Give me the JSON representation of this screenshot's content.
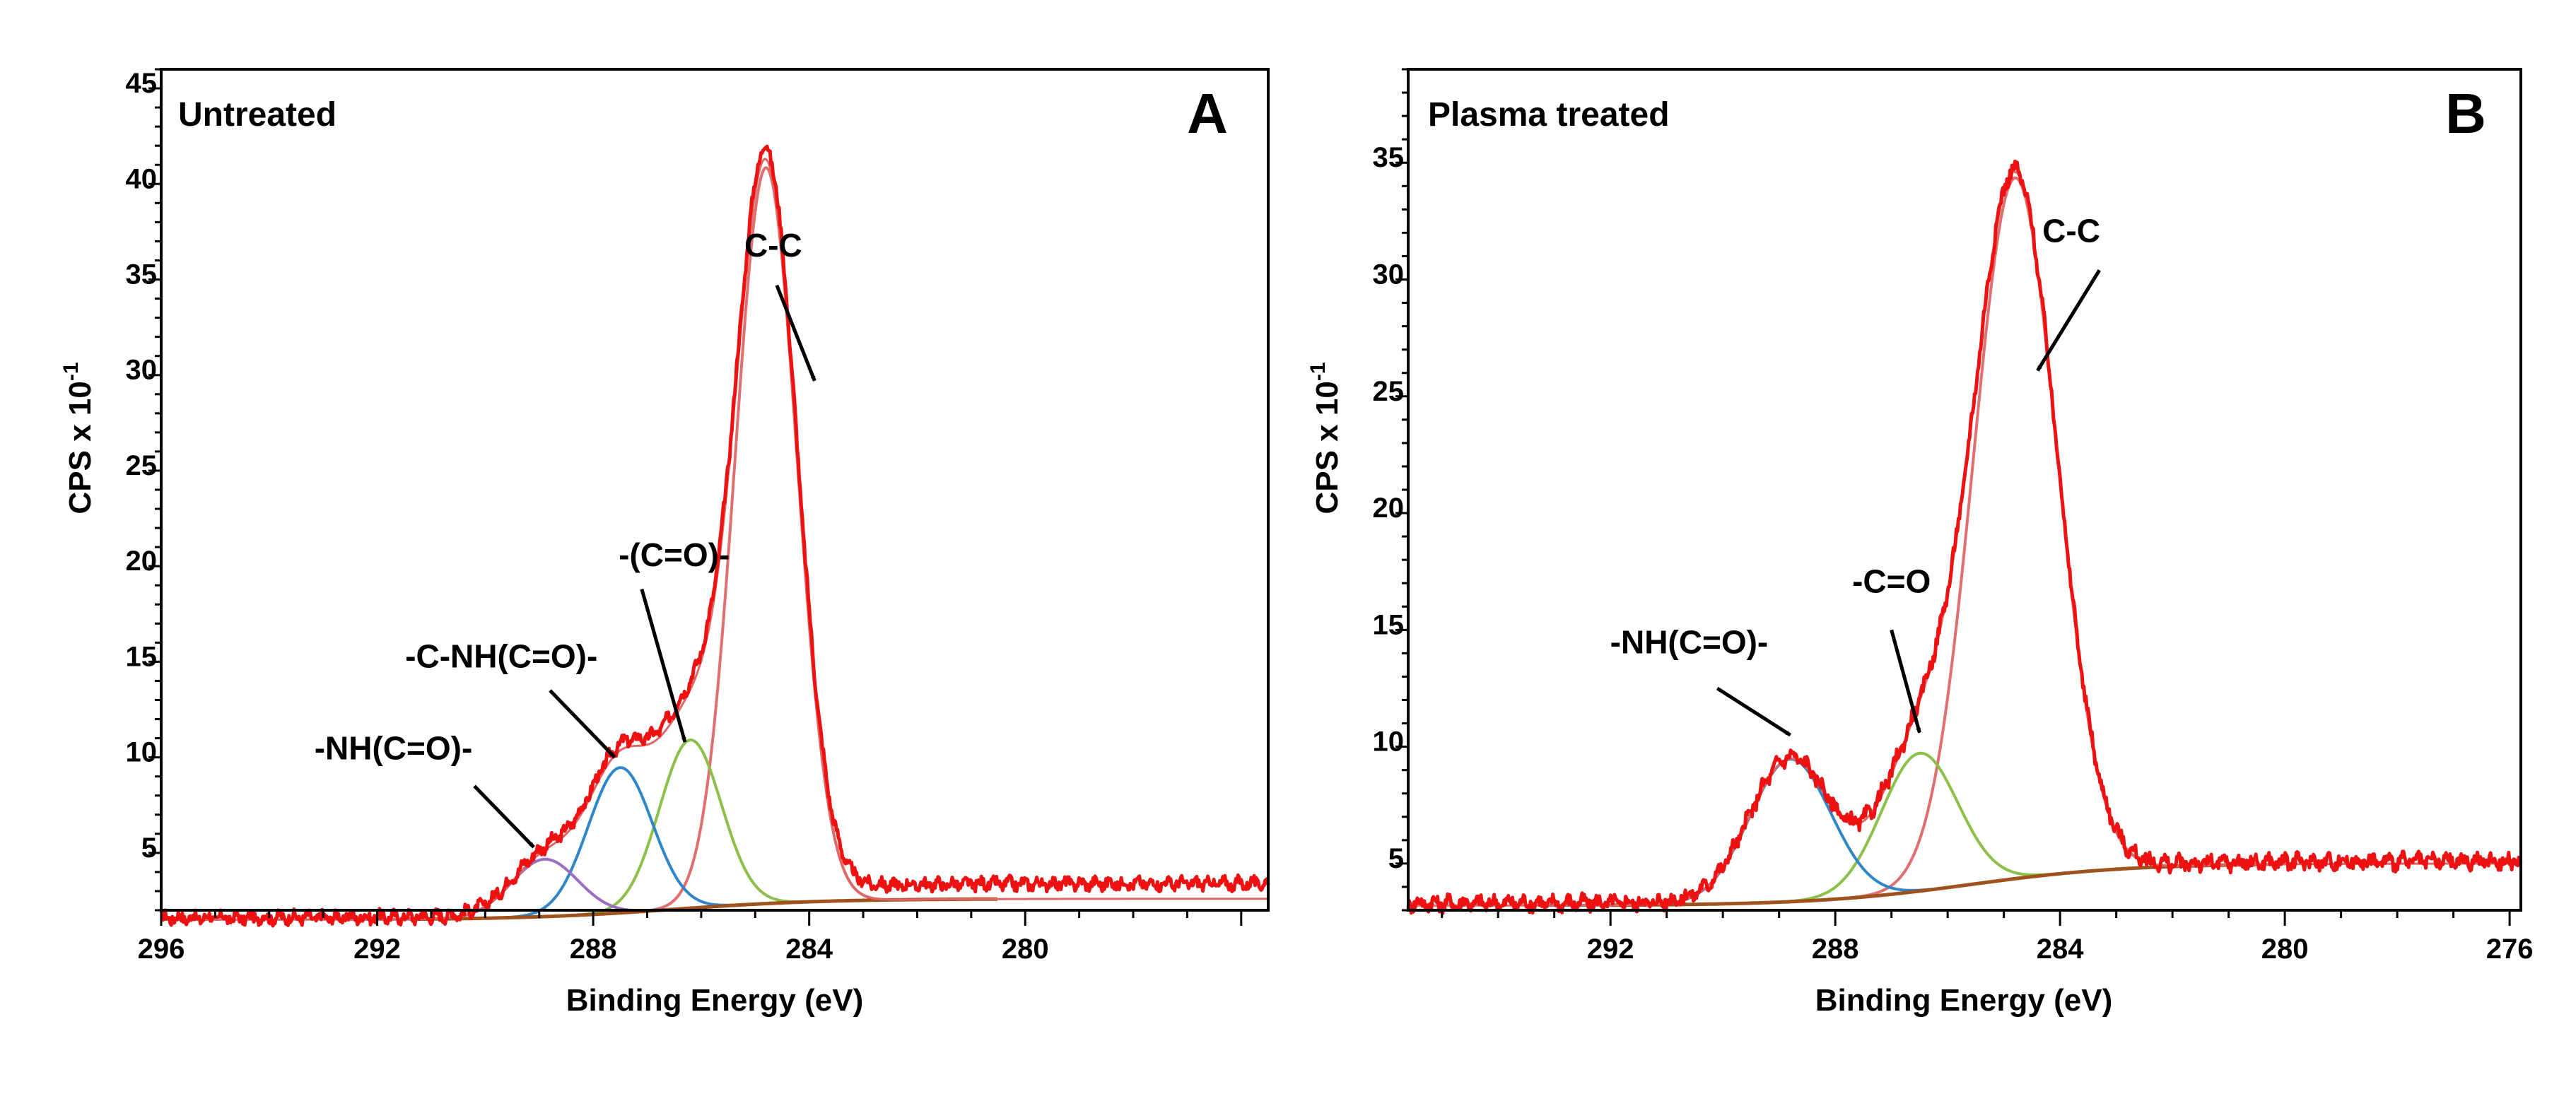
{
  "colors": {
    "measured": "#ee1111",
    "envelope": "#e06666",
    "cc": "#e07070",
    "co": "#8cc048",
    "cnh": "#2f86c8",
    "nh": "#9a6fc0",
    "background": "#a0521d",
    "axis": "#000000"
  },
  "chart_data": [
    {
      "type": "line",
      "panel_letter": "A",
      "label": "Untreated",
      "xlabel": "Binding Energy (eV)",
      "ylabel_main": "CPS x 10",
      "ylabel_exp": "-1",
      "xlim": [
        296,
        275.5
      ],
      "ylim": [
        2,
        46
      ],
      "xticks": [
        296,
        292,
        288,
        284,
        280
      ],
      "xtick_labels": [
        "296",
        "292",
        "288",
        "284",
        "280"
      ],
      "yticks": [
        5,
        10,
        15,
        20,
        25,
        30,
        35,
        40,
        45
      ],
      "ytick_labels": [
        "5",
        "10",
        "15",
        "20",
        "25",
        "30",
        "35",
        "40",
        "45"
      ],
      "baseline": {
        "left": 2.6,
        "right": 1.5,
        "center": 286.5,
        "width": 1.4
      },
      "measured": {
        "left": 3.4,
        "right": 1.6
      },
      "components": [
        {
          "name": "C-C",
          "center": 284.8,
          "amplitude": 38.5,
          "fwhm": 1.35,
          "color_key": "cc"
        },
        {
          "name": "-(C=O)-",
          "center": 286.2,
          "amplitude": 8.8,
          "fwhm": 1.35,
          "color_key": "co"
        },
        {
          "name": "-C-NH(C=O)-",
          "center": 287.5,
          "amplitude": 7.6,
          "fwhm": 1.4,
          "color_key": "cnh"
        },
        {
          "name": "-NH(C=O)-",
          "center": 288.9,
          "amplitude": 3.0,
          "fwhm": 1.45,
          "color_key": "nh"
        }
      ],
      "annotations": [
        {
          "text": "C-C",
          "text_x": 285.2,
          "text_y": 36.2,
          "from_x": 284.6,
          "from_y": 34.7,
          "to_x": 283.9,
          "to_y": 29.7,
          "anchor": "start"
        },
        {
          "text": "-(C=O)-",
          "text_x": 286.5,
          "text_y": 20.0,
          "from_x": 287.1,
          "from_y": 18.8,
          "to_x": 286.3,
          "to_y": 10.8,
          "anchor": "middle"
        },
        {
          "text": "-C-NH(C=O)-",
          "text_x": 289.7,
          "text_y": 14.7,
          "from_x": 288.8,
          "from_y": 13.5,
          "to_x": 287.6,
          "to_y": 10.0,
          "anchor": "middle"
        },
        {
          "text": "-NH(C=O)-",
          "text_x": 291.7,
          "text_y": 9.9,
          "from_x": 290.2,
          "from_y": 8.5,
          "to_x": 289.1,
          "to_y": 5.3,
          "anchor": "middle"
        }
      ]
    },
    {
      "type": "line",
      "panel_letter": "B",
      "label": "Plasma treated",
      "xlabel": "Binding Energy (eV)",
      "ylabel_main": "CPS x 10",
      "ylabel_exp": "-1",
      "xlim": [
        295.6,
        275.8
      ],
      "ylim": [
        3,
        39
      ],
      "xticks": [
        292,
        288,
        284,
        280,
        276
      ],
      "xtick_labels": [
        "292",
        "288",
        "284",
        "280",
        "276"
      ],
      "yticks": [
        5,
        10,
        15,
        20,
        25,
        30,
        35
      ],
      "ytick_labels": [
        "5",
        "10",
        "15",
        "20",
        "25",
        "30",
        "35"
      ],
      "baseline": {
        "left": 5.0,
        "right": 3.2,
        "center": 285.6,
        "width": 1.4
      },
      "measured": {
        "left": 5.1,
        "right": 3.3
      },
      "components": [
        {
          "name": "C-C",
          "center": 284.8,
          "amplitude": 30.0,
          "fwhm": 1.75,
          "color_key": "cc"
        },
        {
          "name": "-C=O",
          "center": 286.5,
          "amplitude": 5.9,
          "fwhm": 1.6,
          "color_key": "co"
        },
        {
          "name": "-NH(C=O)-",
          "center": 288.8,
          "amplitude": 6.1,
          "fwhm": 1.7,
          "color_key": "cnh"
        }
      ],
      "annotations": [
        {
          "text": "C-C",
          "text_x": 283.8,
          "text_y": 31.6,
          "from_x": 283.3,
          "from_y": 30.4,
          "to_x": 284.4,
          "to_y": 26.1,
          "anchor": "middle"
        },
        {
          "text": "-C=O",
          "text_x": 287.0,
          "text_y": 16.6,
          "from_x": 287.0,
          "from_y": 15.0,
          "to_x": 286.5,
          "to_y": 10.6,
          "anchor": "middle"
        },
        {
          "text": "-NH(C=O)-",
          "text_x": 290.6,
          "text_y": 14.0,
          "from_x": 290.1,
          "from_y": 12.5,
          "to_x": 288.8,
          "to_y": 10.5,
          "anchor": "middle"
        }
      ]
    }
  ]
}
